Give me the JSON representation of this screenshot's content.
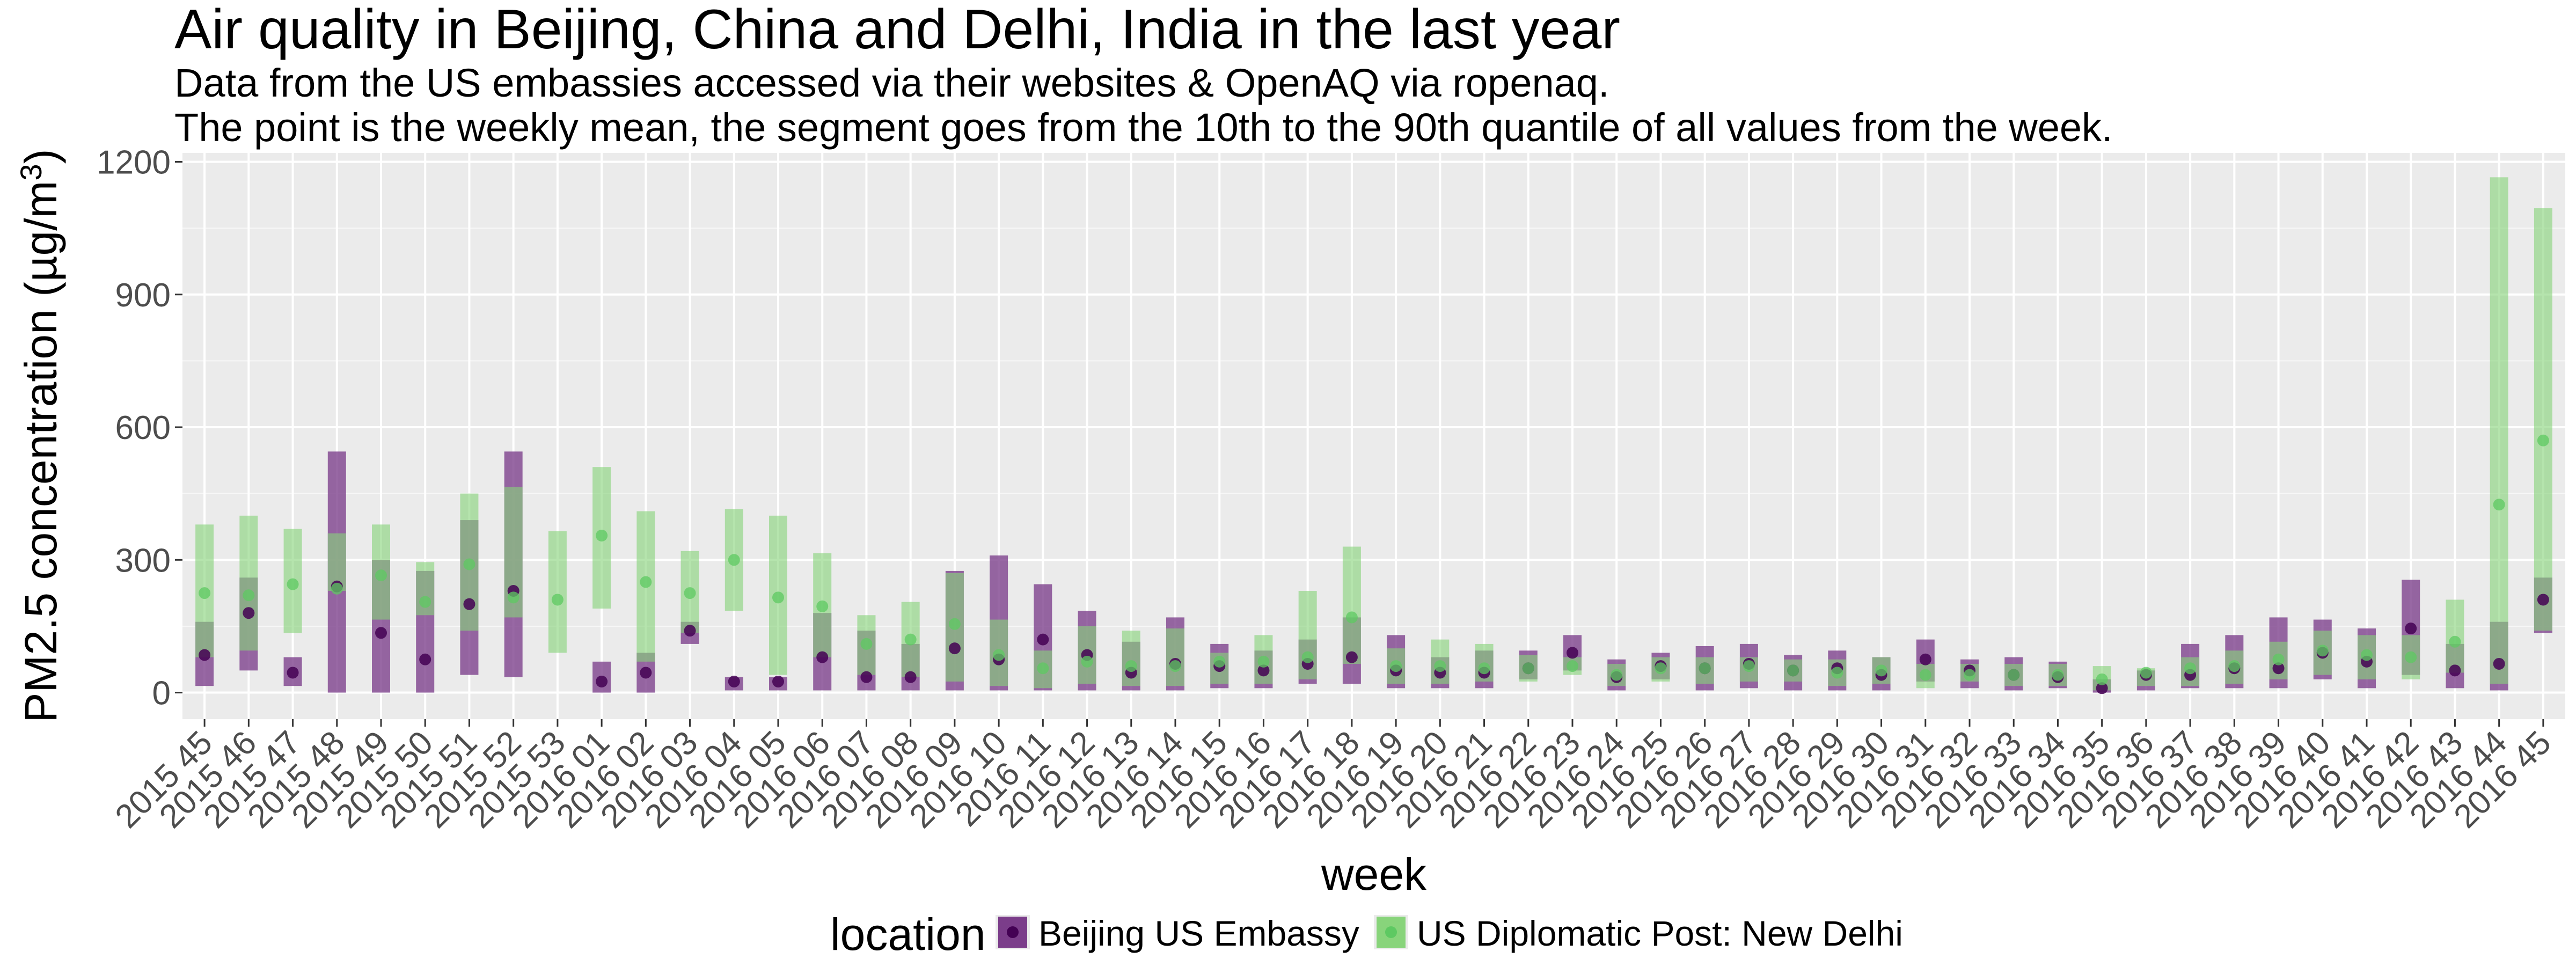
{
  "chart_data": {
    "type": "scatter",
    "title": "Air quality in Beijing, China and Delhi, India in the last year",
    "subtitle_lines": [
      "Data from the US embassies accessed via their websites & OpenAQ via ropenaq.",
      "The point is the weekly mean, the segment goes from the 10th to the 90th quantile of all values from the week."
    ],
    "xlabel": "week",
    "ylabel_main": "PM2.5 concentration (µg/m",
    "ylabel_sup": "3",
    "ylabel_close": ")",
    "ylim": [
      -60,
      1220
    ],
    "yticks": [
      0,
      300,
      600,
      900,
      1200
    ],
    "ytick_labels": [
      "0",
      "300",
      "600",
      "900",
      "1200"
    ],
    "grid": true,
    "legend_position": "bottom",
    "legend_title": "location",
    "categories": [
      "2015 45",
      "2015 46",
      "2015 47",
      "2015 48",
      "2015 49",
      "2015 50",
      "2015 51",
      "2015 52",
      "2015 53",
      "2016 01",
      "2016 02",
      "2016 03",
      "2016 04",
      "2016 05",
      "2016 06",
      "2016 07",
      "2016 08",
      "2016 09",
      "2016 10",
      "2016 11",
      "2016 12",
      "2016 13",
      "2016 14",
      "2016 15",
      "2016 16",
      "2016 17",
      "2016 18",
      "2016 19",
      "2016 20",
      "2016 21",
      "2016 22",
      "2016 23",
      "2016 24",
      "2016 25",
      "2016 26",
      "2016 27",
      "2016 28",
      "2016 29",
      "2016 30",
      "2016 31",
      "2016 32",
      "2016 33",
      "2016 34",
      "2016 35",
      "2016 36",
      "2016 37",
      "2016 38",
      "2016 39",
      "2016 40",
      "2016 41",
      "2016 42",
      "2016 43",
      "2016 44",
      "2016 45"
    ],
    "series": [
      {
        "name": "Beijing US Embassy",
        "color": "#440154",
        "bar_color": "#7b3d8a",
        "means": [
          85,
          180,
          45,
          240,
          135,
          75,
          200,
          230,
          null,
          25,
          45,
          140,
          25,
          25,
          80,
          35,
          35,
          100,
          75,
          120,
          85,
          45,
          65,
          60,
          50,
          65,
          80,
          50,
          45,
          45,
          55,
          90,
          35,
          60,
          55,
          65,
          50,
          55,
          40,
          75,
          50,
          40,
          35,
          10,
          40,
          40,
          55,
          55,
          90,
          70,
          145,
          50,
          65,
          210
        ],
        "p10": [
          15,
          50,
          15,
          0,
          0,
          0,
          40,
          35,
          null,
          0,
          0,
          110,
          5,
          5,
          5,
          5,
          5,
          5,
          5,
          5,
          5,
          5,
          5,
          10,
          10,
          20,
          20,
          10,
          10,
          10,
          30,
          50,
          5,
          30,
          5,
          10,
          5,
          5,
          5,
          25,
          10,
          5,
          10,
          0,
          5,
          10,
          10,
          10,
          30,
          10,
          40,
          10,
          5,
          135
        ],
        "p90": [
          160,
          260,
          80,
          545,
          300,
          275,
          390,
          545,
          null,
          70,
          90,
          160,
          35,
          35,
          180,
          140,
          110,
          275,
          310,
          245,
          185,
          115,
          170,
          110,
          95,
          120,
          170,
          130,
          80,
          95,
          95,
          130,
          75,
          90,
          105,
          110,
          85,
          95,
          80,
          120,
          75,
          80,
          70,
          30,
          50,
          110,
          130,
          170,
          165,
          145,
          255,
          110,
          160,
          260
        ]
      },
      {
        "name": "US Diplomatic Post: New Delhi",
        "color": "#5ec962",
        "bar_color": "#88d47b",
        "means": [
          225,
          220,
          245,
          235,
          265,
          205,
          290,
          215,
          210,
          355,
          250,
          225,
          300,
          215,
          195,
          110,
          120,
          155,
          85,
          55,
          70,
          60,
          60,
          70,
          70,
          80,
          170,
          60,
          60,
          55,
          55,
          60,
          40,
          55,
          55,
          60,
          50,
          45,
          50,
          40,
          40,
          40,
          40,
          30,
          45,
          55,
          60,
          75,
          95,
          85,
          80,
          115,
          425,
          570
        ],
        "p10": [
          80,
          95,
          135,
          230,
          165,
          175,
          140,
          170,
          90,
          190,
          70,
          135,
          185,
          40,
          80,
          40,
          35,
          25,
          15,
          10,
          20,
          15,
          15,
          20,
          20,
          30,
          65,
          20,
          20,
          25,
          25,
          40,
          15,
          25,
          20,
          25,
          25,
          15,
          20,
          10,
          25,
          15,
          15,
          5,
          15,
          15,
          20,
          30,
          40,
          30,
          30,
          45,
          20,
          140
        ],
        "p90": [
          380,
          400,
          370,
          360,
          380,
          295,
          450,
          465,
          365,
          510,
          410,
          320,
          415,
          400,
          315,
          175,
          205,
          270,
          165,
          95,
          150,
          140,
          145,
          90,
          130,
          230,
          330,
          100,
          120,
          110,
          85,
          80,
          65,
          80,
          80,
          80,
          75,
          75,
          80,
          65,
          65,
          65,
          65,
          60,
          55,
          80,
          95,
          115,
          140,
          130,
          130,
          210,
          1165,
          1095
        ]
      }
    ]
  }
}
